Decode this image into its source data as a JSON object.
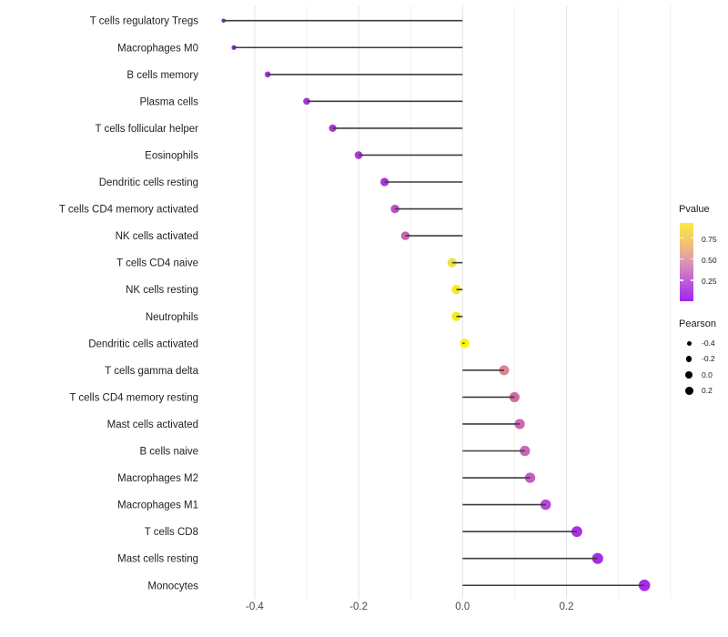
{
  "chart_data": {
    "type": "lollipop",
    "orientation": "horizontal",
    "title": "",
    "xlabel": "",
    "ylabel": "",
    "x_ticks": [
      -0.4,
      -0.2,
      0.0,
      0.2
    ],
    "x_tick_labels": [
      "-0.4",
      "-0.2",
      "0.0",
      "0.2"
    ],
    "x_minor_gridlines": [
      -0.3,
      -0.1,
      0.1,
      0.3,
      0.4
    ],
    "xlim": [
      -0.473,
      0.409
    ],
    "grid": "vertical-only",
    "legend_position": "right",
    "categories": [
      "T cells regulatory  Tregs",
      "Macrophages M0",
      "B cells memory",
      "Plasma cells",
      "T cells follicular helper",
      "Eosinophils",
      "Dendritic cells resting",
      "T cells CD4 memory activated",
      "NK cells activated",
      "T cells CD4 naive",
      "NK cells resting",
      "Neutrophils",
      "Dendritic cells activated",
      "T cells gamma delta",
      "T cells CD4 memory resting",
      "Mast cells activated",
      "B cells naive",
      "Macrophages M2",
      "Macrophages M1",
      "T cells CD8",
      "Mast cells resting",
      "Monocytes"
    ],
    "series": [
      {
        "name": "Pearson",
        "values": [
          -0.46,
          -0.44,
          -0.375,
          -0.3,
          -0.25,
          -0.2,
          -0.15,
          -0.13,
          -0.11,
          -0.02,
          -0.012,
          -0.012,
          0.004,
          0.08,
          0.1,
          0.11,
          0.12,
          0.13,
          0.16,
          0.22,
          0.26,
          0.35
        ]
      },
      {
        "name": "Pvalue (approx, inferred from color scale)",
        "values": [
          0.03,
          0.05,
          0.08,
          0.1,
          0.12,
          0.13,
          0.14,
          0.25,
          0.33,
          0.9,
          0.94,
          0.94,
          0.98,
          0.55,
          0.38,
          0.34,
          0.33,
          0.28,
          0.2,
          0.12,
          0.1,
          0.08
        ]
      }
    ],
    "point_colors": [
      "#7D28C8",
      "#8A2BD0",
      "#A032DA",
      "#A637DC",
      "#A838DA",
      "#AA39D8",
      "#A936D6",
      "#BC4EC6",
      "#C765B2",
      "#F0E243",
      "#F6EB21",
      "#F6EB21",
      "#FBF409",
      "#DE8490",
      "#CE6BA6",
      "#CD65B2",
      "#CC63B6",
      "#C75AC6",
      "#B845D8",
      "#AA30E4",
      "#A72CE8",
      "#A62BE8"
    ]
  },
  "legend": {
    "pvalue": {
      "title": "Pvalue",
      "ticks": [
        "0.75",
        "0.50",
        "0.25"
      ],
      "gradient_bottom_to_top": [
        "#A224EE",
        "#C05CD8",
        "#DE95B5",
        "#F3C56E",
        "#FAEA45"
      ]
    },
    "pearson": {
      "title": "Pearson",
      "items": [
        {
          "label": "-0.4",
          "size": 5
        },
        {
          "label": "-0.2",
          "size": 6.5
        },
        {
          "label": "0.0",
          "size": 8
        },
        {
          "label": "0.2",
          "size": 9
        }
      ]
    }
  },
  "colors": {
    "stem": "#3D3D3D",
    "grid_major": "#E3E3E3",
    "grid_minor": "#F0F0F0",
    "axis_text": "#4A4A4A",
    "label_text": "#1F1F1F",
    "background": "#FFFFFF"
  }
}
